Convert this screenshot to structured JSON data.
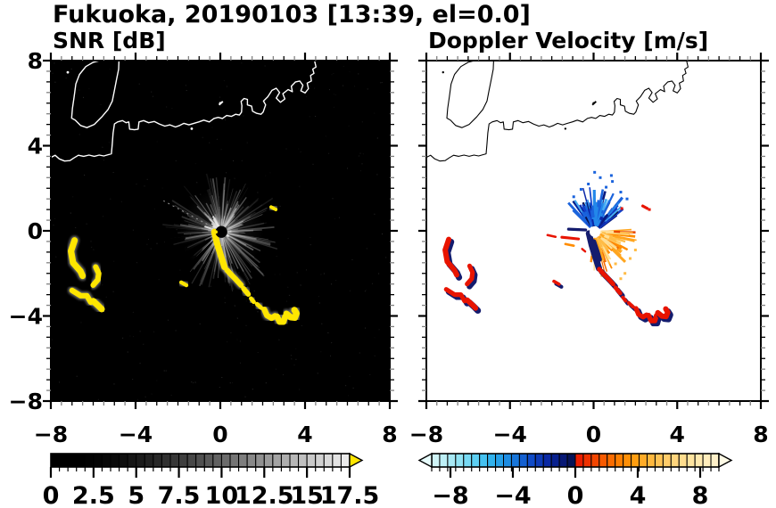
{
  "title": "Fukuoka, 20190103 [13:39, el=0.0]",
  "panels": {
    "snr": {
      "title": "SNR [dB]"
    },
    "velocity": {
      "title": "Doppler Velocity [m/s]"
    }
  },
  "chart_data": [
    {
      "type": "heatmap",
      "title": "SNR [dB]",
      "background": "#000000",
      "coast_color": "#ffffff",
      "echo_color": "#ffe600",
      "axis": {
        "xlim": [
          -8,
          8
        ],
        "ylim": [
          -8,
          8
        ],
        "xticks": [
          -8,
          -4,
          0,
          4,
          8
        ],
        "xtick_labels": [
          "−8",
          "−4",
          "0",
          "4",
          "8"
        ],
        "yticks": [
          8,
          4,
          0,
          -4,
          -8
        ],
        "ytick_labels": [
          "8",
          "4",
          "0",
          "−4",
          "−8"
        ],
        "minor_step": 0.5
      },
      "radar_center": [
        0.05,
        -0.05
      ],
      "colorbar": {
        "vmin": 0,
        "vmax": 17.5,
        "segments": 35,
        "tick_values": [
          0,
          2.5,
          5,
          7.5,
          10,
          12.5,
          15,
          17.5
        ],
        "tick_labels": [
          "0",
          "2.5",
          "5",
          "7.5",
          "10",
          "12.5",
          "15",
          "17.5"
        ],
        "gray_stops": [
          "#000000",
          "#000000",
          "#0a0a0a",
          "#222222",
          "#3f3f3f",
          "#616161",
          "#868686",
          "#ababab",
          "#cfcfcf",
          "#efefef"
        ],
        "overflow_arrow_color": "#ffe600"
      }
    },
    {
      "type": "heatmap",
      "title": "Doppler Velocity [m/s]",
      "background": "#ffffff",
      "coast_color": "#000000",
      "axis": {
        "xlim": [
          -8,
          8
        ],
        "ylim": [
          -8,
          8
        ],
        "xticks": [
          -8,
          -4,
          0,
          4,
          8
        ],
        "xtick_labels": [
          "−8",
          "−4",
          "0",
          "4",
          "8"
        ],
        "minor_step": 0.5
      },
      "radar_center": [
        0.05,
        -0.05
      ],
      "colors": {
        "red": "#e81400",
        "navy": "#141c6e",
        "orange": "#ff8c00",
        "blue_palette": [
          "#45aaf2",
          "#2388ea",
          "#1a63dc",
          "#1140c8",
          "#0b27a8",
          "#081a7e",
          "#061250"
        ],
        "warm_palette": [
          "#ff8c00",
          "#ffa51e",
          "#ffbc46",
          "#ffd070",
          "#ffdf96",
          "#f26a00",
          "#e84800"
        ]
      },
      "colorbar": {
        "vmin": -10,
        "vmax": 10,
        "segments": 36,
        "tick_values": [
          -8,
          -4,
          0,
          4,
          8
        ],
        "tick_labels": [
          "−8",
          "−4",
          "0",
          "4",
          "8"
        ],
        "neg_stops": [
          "#d8f6f8",
          "#b8eef6",
          "#8fe2f4",
          "#5fd0f2",
          "#35b7ee",
          "#1f97e6",
          "#176fd8",
          "#1049c6",
          "#0a2aa6",
          "#071a7e",
          "#051048"
        ],
        "pos_stops": [
          "#e81400",
          "#f03700",
          "#f85c00",
          "#fe7d00",
          "#ff9a0a",
          "#ffb232",
          "#ffc65c",
          "#ffd67f",
          "#ffe39e",
          "#ffecb8",
          "#fff3cf"
        ],
        "left_arrow_color": "#e6fbfb",
        "right_arrow_color": "#fffbe6"
      }
    }
  ],
  "geo": {
    "mainland": [
      [
        -8.05,
        3.42
      ],
      [
        -7.8,
        3.55
      ],
      [
        -7.6,
        3.38
      ],
      [
        -7.35,
        3.28
      ],
      [
        -7.1,
        3.3
      ],
      [
        -6.92,
        3.42
      ],
      [
        -6.7,
        3.55
      ],
      [
        -6.45,
        3.5
      ],
      [
        -6.2,
        3.56
      ],
      [
        -5.95,
        3.5
      ],
      [
        -5.72,
        3.56
      ],
      [
        -5.5,
        3.52
      ],
      [
        -5.28,
        3.58
      ],
      [
        -5.14,
        3.62
      ],
      [
        -5.1,
        4.1
      ],
      [
        -5.06,
        4.6
      ],
      [
        -5.0,
        5.02
      ],
      [
        -4.85,
        5.12
      ],
      [
        -4.62,
        5.18
      ],
      [
        -4.45,
        5.08
      ],
      [
        -4.32,
        5.12
      ],
      [
        -4.28,
        4.78
      ],
      [
        -4.05,
        4.75
      ],
      [
        -3.88,
        4.78
      ],
      [
        -3.84,
        5.12
      ],
      [
        -3.62,
        5.18
      ],
      [
        -3.38,
        5.08
      ],
      [
        -3.12,
        5.14
      ],
      [
        -2.88,
        5.02
      ],
      [
        -2.62,
        4.92
      ],
      [
        -2.38,
        4.98
      ],
      [
        -2.12,
        4.88
      ],
      [
        -1.92,
        4.95
      ],
      [
        -1.72,
        5.05
      ],
      [
        -1.48,
        4.98
      ],
      [
        -1.25,
        5.05
      ],
      [
        -1.02,
        5.12
      ],
      [
        -0.78,
        5.2
      ],
      [
        -0.52,
        5.12
      ],
      [
        -0.3,
        5.28
      ],
      [
        -0.1,
        5.33
      ],
      [
        0.1,
        5.28
      ],
      [
        0.3,
        5.42
      ],
      [
        0.52,
        5.38
      ],
      [
        0.72,
        5.48
      ],
      [
        0.9,
        5.44
      ],
      [
        1.0,
        5.58
      ],
      [
        1.02,
        5.88
      ],
      [
        0.98,
        6.08
      ],
      [
        1.12,
        6.22
      ],
      [
        1.28,
        6.18
      ],
      [
        1.28,
        5.92
      ],
      [
        1.48,
        5.86
      ],
      [
        1.52,
        5.62
      ],
      [
        1.72,
        5.52
      ],
      [
        1.92,
        5.48
      ],
      [
        2.02,
        5.58
      ],
      [
        2.14,
        5.92
      ],
      [
        2.04,
        6.1
      ],
      [
        2.24,
        6.3
      ],
      [
        2.44,
        6.6
      ],
      [
        2.64,
        6.7
      ],
      [
        2.8,
        6.5
      ],
      [
        2.64,
        6.24
      ],
      [
        2.84,
        6.04
      ],
      [
        3.05,
        6.2
      ],
      [
        2.95,
        6.44
      ],
      [
        3.2,
        6.64
      ],
      [
        3.4,
        6.54
      ],
      [
        3.35,
        6.8
      ],
      [
        3.55,
        7.0
      ],
      [
        3.75,
        7.04
      ],
      [
        3.9,
        6.84
      ],
      [
        3.8,
        6.58
      ],
      [
        4.0,
        6.48
      ],
      [
        4.16,
        6.68
      ],
      [
        4.1,
        6.94
      ],
      [
        4.3,
        7.04
      ],
      [
        4.26,
        7.3
      ],
      [
        4.42,
        7.4
      ],
      [
        4.36,
        7.6
      ],
      [
        4.52,
        7.7
      ],
      [
        4.46,
        7.95
      ],
      [
        4.52,
        8.1
      ]
    ],
    "island": [
      [
        -4.78,
        8.1
      ],
      [
        -4.8,
        7.6
      ],
      [
        -4.9,
        7.1
      ],
      [
        -5.0,
        6.6
      ],
      [
        -5.1,
        6.1
      ],
      [
        -5.3,
        5.7
      ],
      [
        -5.6,
        5.35
      ],
      [
        -5.95,
        5.0
      ],
      [
        -6.3,
        4.85
      ],
      [
        -6.6,
        4.95
      ],
      [
        -6.85,
        5.2
      ],
      [
        -7.02,
        5.3
      ],
      [
        -6.98,
        5.75
      ],
      [
        -6.9,
        6.3
      ],
      [
        -6.82,
        6.9
      ],
      [
        -6.65,
        7.35
      ],
      [
        -6.35,
        7.72
      ],
      [
        -6.0,
        7.92
      ],
      [
        -5.6,
        8.02
      ],
      [
        -5.15,
        8.06
      ],
      [
        -4.78,
        8.1
      ]
    ],
    "marks": [
      [
        0.0,
        6.0
      ],
      [
        -1.35,
        4.8
      ],
      [
        -7.2,
        7.45
      ]
    ],
    "breakwater": [
      [
        -0.06,
        5.92
      ],
      [
        0.12,
        6.08
      ]
    ]
  },
  "echoes": [
    {
      "pts": [
        [
          -6.88,
          -0.45
        ],
        [
          -7.05,
          -0.95
        ],
        [
          -6.95,
          -1.5
        ],
        [
          -6.6,
          -1.9
        ],
        [
          -6.5,
          -2.12
        ]
      ],
      "w": 0.3
    },
    {
      "pts": [
        [
          -5.88,
          -1.7
        ],
        [
          -5.74,
          -2.0
        ],
        [
          -5.78,
          -2.3
        ],
        [
          -6.0,
          -2.55
        ]
      ],
      "w": 0.26
    },
    {
      "pts": [
        [
          -7.0,
          -2.8
        ],
        [
          -6.6,
          -3.05
        ],
        [
          -6.3,
          -3.05
        ],
        [
          -6.12,
          -3.35
        ]
      ],
      "w": 0.26
    },
    {
      "pts": [
        [
          -6.0,
          -3.3
        ],
        [
          -5.78,
          -3.5
        ],
        [
          -5.6,
          -3.68
        ]
      ],
      "w": 0.3
    },
    {
      "pts": [
        [
          -0.28,
          -0.05
        ],
        [
          -0.15,
          -0.6
        ],
        [
          0.02,
          -1.15
        ],
        [
          0.2,
          -1.7
        ]
      ],
      "w": 0.3,
      "vel": "navy"
    },
    {
      "pts": [
        [
          0.32,
          -1.85
        ],
        [
          0.55,
          -2.1
        ],
        [
          0.75,
          -2.3
        ],
        [
          0.98,
          -2.55
        ]
      ],
      "w": 0.26
    },
    {
      "pts": [
        [
          1.1,
          -2.72
        ],
        [
          1.32,
          -2.98
        ]
      ],
      "w": 0.24
    },
    {
      "pts": [
        [
          1.45,
          -3.18
        ],
        [
          1.58,
          -3.34
        ]
      ],
      "w": 0.2
    },
    {
      "pts": [
        [
          1.73,
          -3.44
        ],
        [
          1.93,
          -3.62
        ]
      ],
      "w": 0.2
    },
    {
      "pts": [
        [
          2.08,
          -3.7
        ],
        [
          2.2,
          -3.98
        ],
        [
          2.42,
          -4.1
        ],
        [
          2.58,
          -4.0
        ]
      ],
      "w": 0.27
    },
    {
      "pts": [
        [
          2.68,
          -4.02
        ],
        [
          2.8,
          -4.28
        ],
        [
          2.98,
          -4.28
        ],
        [
          3.06,
          -4.02
        ]
      ],
      "w": 0.28
    },
    {
      "pts": [
        [
          3.12,
          -3.9
        ],
        [
          3.32,
          -4.06
        ],
        [
          3.52,
          -4.08
        ],
        [
          3.6,
          -3.88
        ],
        [
          3.5,
          -3.72
        ]
      ],
      "w": 0.3
    },
    {
      "pts": [
        [
          -1.85,
          -2.42
        ],
        [
          -1.6,
          -2.56
        ]
      ],
      "w": 0.18
    },
    {
      "pts": [
        [
          2.4,
          1.12
        ],
        [
          2.62,
          1.0
        ]
      ],
      "w": 0.16,
      "vel": "red"
    }
  ],
  "vel_dashes": [
    {
      "pts": [
        [
          -1.2,
          0.08
        ],
        [
          -0.38,
          0.04
        ]
      ],
      "w": 0.14,
      "c": "#141c6e"
    },
    {
      "pts": [
        [
          -1.52,
          -0.3
        ],
        [
          -0.72,
          -0.38
        ]
      ],
      "w": 0.13,
      "c": "#e81400"
    },
    {
      "pts": [
        [
          -2.2,
          -0.2
        ],
        [
          -1.82,
          -0.28
        ]
      ],
      "w": 0.11,
      "c": "#e81400"
    },
    {
      "pts": [
        [
          -1.35,
          -0.62
        ],
        [
          -0.95,
          -0.7
        ]
      ],
      "w": 0.11,
      "c": "#ff8c00"
    },
    {
      "pts": [
        [
          -0.55,
          -0.85
        ],
        [
          -0.4,
          -0.97
        ]
      ],
      "w": 0.1,
      "c": "#e81400"
    }
  ],
  "vel_navy_wedge": {
    "pts": [
      [
        0.02,
        -0.5
      ],
      [
        0.18,
        -0.95
      ],
      [
        0.3,
        -1.35
      ]
    ],
    "w": 0.2
  },
  "vel_blue_specks": [
    [
      0.32,
      2.5
    ],
    [
      0.9,
      2.32
    ],
    [
      -0.25,
      2.2
    ],
    [
      0.6,
      2.05
    ],
    [
      1.3,
      1.82
    ],
    [
      -0.6,
      1.95
    ],
    [
      0.05,
      2.75
    ],
    [
      1.6,
      1.5
    ],
    [
      -0.95,
      1.6
    ],
    [
      0.85,
      2.6
    ]
  ],
  "vel_warm_specks": [
    [
      1.5,
      -2.0
    ],
    [
      1.05,
      -1.55
    ],
    [
      1.75,
      -1.3
    ],
    [
      0.4,
      -2.1
    ],
    [
      1.3,
      -2.25
    ],
    [
      2.0,
      -0.9
    ]
  ],
  "vel_red_specks": [
    [
      2.67,
      1.0
    ],
    [
      1.35,
      1.05
    ]
  ],
  "snr_black_wedges": [
    {
      "a": 214,
      "hw": 5
    },
    {
      "a": 228,
      "hw": 3.5
    },
    {
      "a": 200,
      "hw": 2
    },
    {
      "a": 243,
      "hw": 2
    },
    {
      "a": 186,
      "hw": 1.2
    }
  ]
}
